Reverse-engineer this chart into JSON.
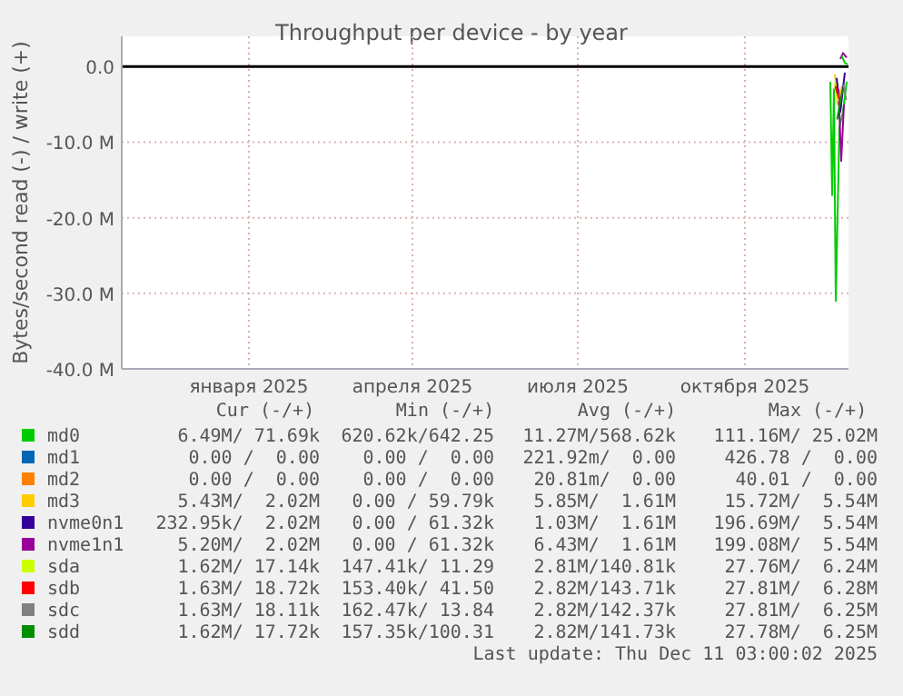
{
  "chart_data": {
    "type": "line",
    "title": "Throughput per device - by year",
    "ylabel": "Bytes/second read (-) / write (+)",
    "xlim": [
      "2024-10-23",
      "2025-11-27"
    ],
    "xticks": [
      {
        "value": "2025-01-01",
        "label": "января 2025"
      },
      {
        "value": "2025-04-01",
        "label": "апреля 2025"
      },
      {
        "value": "2025-07-01",
        "label": "июля 2025"
      },
      {
        "value": "2025-10-01",
        "label": "октября 2025"
      }
    ],
    "ylim": [
      -40,
      4
    ],
    "yticks": [
      {
        "value": 0,
        "label": "0.0"
      },
      {
        "value": -10,
        "label": "-10.0 M"
      },
      {
        "value": -20,
        "label": "-20.0 M"
      },
      {
        "value": -30,
        "label": "-30.0 M"
      },
      {
        "value": -40,
        "label": "-40.0 M"
      }
    ],
    "grid": true,
    "legend": "bottom",
    "ref_lines": [
      {
        "axis": "y",
        "value": 0,
        "color": "#000000"
      }
    ],
    "series": [
      {
        "name": "md0",
        "color": "#00cc00",
        "x": [
          "2025-11-17",
          "2025-11-18",
          "2025-11-19",
          "2025-11-20",
          "2025-11-22",
          "2025-11-24",
          "2025-11-26"
        ],
        "values": [
          -2,
          -17,
          -3,
          -31,
          -8,
          -6,
          -2
        ]
      },
      {
        "name": "md1",
        "color": "#0066b3",
        "values": [
          null
        ]
      },
      {
        "name": "md2",
        "color": "#ff8000",
        "values": [
          null
        ]
      },
      {
        "name": "md3",
        "color": "#ffcc00",
        "x": [
          "2025-11-19T12:00",
          "2025-11-21",
          "2025-11-23T12:00"
        ],
        "values": [
          -1,
          -5,
          -2.5
        ]
      },
      {
        "name": "nvme0n1",
        "color": "#330099",
        "x": [
          "2025-11-20T12:00",
          "2025-11-22T12:00",
          "2025-11-25"
        ],
        "values": [
          -1.5,
          -6,
          -0.8
        ]
      },
      {
        "name": "nvme1n1",
        "color": "#990099",
        "x": [
          "2025-11-21T12:00",
          "2025-11-23",
          "2025-11-24T12:00"
        ],
        "values": [
          -3,
          -12.5,
          -5
        ]
      },
      {
        "name": "sda",
        "color": "#ccff00",
        "x": [
          "2025-11-19T06:00",
          "2025-11-21T06:00"
        ],
        "values": [
          -2.2,
          -4.6
        ]
      },
      {
        "name": "sdb",
        "color": "#ff0000",
        "x": [
          "2025-11-19T18:00",
          "2025-11-21T18:00"
        ],
        "values": [
          -2.6,
          -4.2
        ]
      },
      {
        "name": "sdc",
        "color": "#808080",
        "x": [
          "2025-11-24T06:00",
          "2025-11-25T18:00"
        ],
        "values": [
          -2.4,
          -4.4
        ]
      },
      {
        "name": "sdd",
        "color": "#008f00",
        "x": [
          "2025-11-20T18:00",
          "2025-11-23T18:00"
        ],
        "values": [
          -7,
          -3
        ]
      },
      {
        "color": "#990099",
        "x": [
          "2025-11-22T12:00",
          "2025-11-24",
          "2025-11-26"
        ],
        "values": [
          1,
          1.8,
          1.2
        ]
      },
      {
        "color": "#00cc00",
        "x": [
          "2025-11-23",
          "2025-11-25",
          "2025-11-26T12:00"
        ],
        "values": [
          1.5,
          0.5,
          0.3
        ]
      }
    ],
    "annotations": [
      "Cur (-/+)",
      "Min (-/+)",
      "Avg (-/+)",
      "Max (-/+)",
      "6.49M/ 71.69k",
      "620.62k/642.25",
      "11.27M/568.62k",
      "111.16M/ 25.02M",
      "0.00 /  0.00",
      "0.00 /  0.00",
      "221.92m/  0.00",
      "426.78 /  0.00",
      "0.00 /  0.00",
      "0.00 /  0.00",
      "20.81m/  0.00",
      "40.01 /  0.00",
      "5.43M/  2.02M",
      "0.00 / 59.79k",
      "5.85M/  1.61M",
      "15.72M/  5.54M",
      "232.95k/  2.02M",
      "0.00 / 61.32k",
      "1.03M/  1.61M",
      "196.69M/  5.54M",
      "5.20M/  2.02M",
      "0.00 / 61.32k",
      "6.43M/  1.61M",
      "199.08M/  5.54M",
      "1.62M/ 17.14k",
      "147.41k/ 11.29",
      "2.81M/140.81k",
      "27.76M/  6.24M",
      "1.63M/ 18.72k",
      "153.40k/ 41.50",
      "2.82M/143.71k",
      "27.81M/  6.28M",
      "1.63M/ 18.11k",
      "162.47k/ 13.84",
      "2.82M/142.37k",
      "27.81M/  6.25M",
      "1.62M/ 17.72k",
      "157.35k/100.31",
      "2.82M/141.73k",
      "27.78M/  6.25M",
      "Last update: Thu Dec 11 03:00:02 2025"
    ]
  }
}
